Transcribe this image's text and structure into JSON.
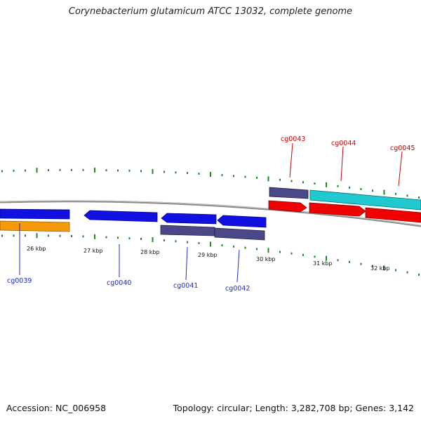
{
  "title": "Corynebacterium glutamicum ATCC 13032, complete genome",
  "footer": {
    "accession": "Accession: NC_006958",
    "summary": "Topology: circular; Length: 3,282,708 bp; Genes: 3,142"
  },
  "colors": {
    "backbone": "#8a8a8a",
    "tick": "#1f8a1f",
    "gene_blue": "#1010e0",
    "gene_slate": "#4a4888",
    "gene_orange": "#f59a0a",
    "gene_red": "#f00000",
    "gene_cyan": "#20c8d0",
    "label_blue": "#1e2bd0",
    "label_red": "#cc0000"
  },
  "scale_labels": [
    "26 kbp",
    "27 kbp",
    "28 kbp",
    "29 kbp",
    "30 kbp",
    "31 kbp",
    "32 kbp"
  ],
  "genes": [
    {
      "id": "cg0039",
      "color": "blue"
    },
    {
      "id": "cg0040",
      "color": "blue"
    },
    {
      "id": "cg0041",
      "color": "blue"
    },
    {
      "id": "cg0042",
      "color": "blue"
    },
    {
      "id": "cg0043",
      "color": "red"
    },
    {
      "id": "cg0044",
      "color": "red"
    },
    {
      "id": "cg0045",
      "color": "red"
    }
  ]
}
